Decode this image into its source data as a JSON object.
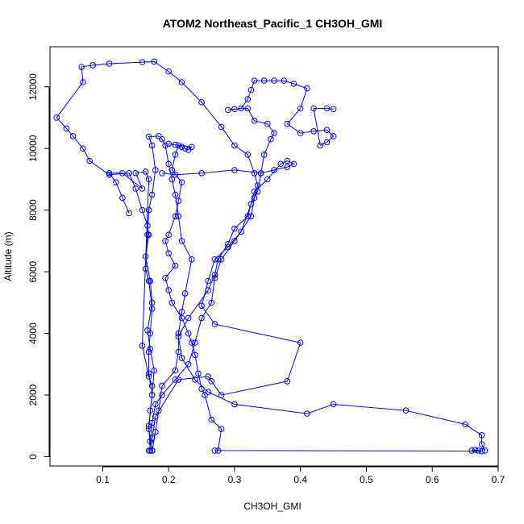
{
  "chart_data": {
    "type": "line",
    "title": "ATOM2 Northeast_Pacific_1 CH3OH_GMI",
    "xlabel": "CH3OH_GMI",
    "ylabel": "Altitude (m)",
    "xlim": [
      0.02,
      0.7
    ],
    "ylim": [
      -300,
      13300
    ],
    "x_ticks": [
      0.1,
      0.2,
      0.3,
      0.4,
      0.5,
      0.6,
      0.7
    ],
    "x_tick_labels": [
      "0.1",
      "0.2",
      "0.3",
      "0.4",
      "0.5",
      "0.6",
      "0.7"
    ],
    "y_ticks": [
      0,
      2000,
      4000,
      6000,
      8000,
      10000,
      12000
    ],
    "y_tick_labels": [
      "0",
      "2000",
      "4000",
      "6000",
      "8000",
      "10000",
      "12000"
    ],
    "grid": false,
    "legend": "none",
    "colors": {
      "series": "#0000ff",
      "axes": "#000000",
      "background": "#ffffff"
    },
    "series": [
      {
        "points": [
          [
            0.172,
            200
          ],
          [
            0.17,
            1000
          ],
          [
            0.175,
            2000
          ],
          [
            0.178,
            2800
          ],
          [
            0.172,
            3500
          ],
          [
            0.168,
            4100
          ],
          [
            0.175,
            5000
          ],
          [
            0.172,
            5700
          ],
          [
            0.165,
            6500
          ],
          [
            0.17,
            7200
          ],
          [
            0.168,
            7500
          ],
          [
            0.16,
            8000
          ],
          [
            0.15,
            8700
          ],
          [
            0.14,
            9200
          ],
          [
            0.11,
            9150
          ],
          [
            0.08,
            9600
          ],
          [
            0.07,
            10000
          ],
          [
            0.055,
            10400
          ],
          [
            0.045,
            10650
          ],
          [
            0.03,
            11000
          ],
          [
            0.07,
            12150
          ],
          [
            0.068,
            12650
          ],
          [
            0.085,
            12700
          ],
          [
            0.11,
            12750
          ],
          [
            0.16,
            12800
          ],
          [
            0.178,
            12820
          ],
          [
            0.2,
            12500
          ],
          [
            0.22,
            12150
          ],
          [
            0.25,
            11500
          ],
          [
            0.28,
            10700
          ],
          [
            0.3,
            10100
          ],
          [
            0.32,
            9800
          ],
          [
            0.33,
            9200
          ],
          [
            0.335,
            8800
          ],
          [
            0.33,
            8400
          ],
          [
            0.325,
            7800
          ],
          [
            0.3,
            7000
          ],
          [
            0.28,
            6400
          ],
          [
            0.27,
            5800
          ],
          [
            0.265,
            5000
          ],
          [
            0.25,
            4500
          ],
          [
            0.24,
            3700
          ],
          [
            0.23,
            3000
          ],
          [
            0.21,
            2500
          ],
          [
            0.19,
            2000
          ],
          [
            0.18,
            1700
          ],
          [
            0.175,
            1100
          ],
          [
            0.172,
            500
          ],
          [
            0.175,
            200
          ]
        ]
      },
      {
        "points": [
          [
            0.175,
            200
          ],
          [
            0.18,
            800
          ],
          [
            0.185,
            1500
          ],
          [
            0.19,
            2300
          ],
          [
            0.21,
            2800
          ],
          [
            0.215,
            3400
          ],
          [
            0.215,
            4000
          ],
          [
            0.22,
            4700
          ],
          [
            0.225,
            5300
          ],
          [
            0.235,
            6400
          ],
          [
            0.22,
            7000
          ],
          [
            0.215,
            7800
          ],
          [
            0.21,
            8500
          ],
          [
            0.205,
            9000
          ],
          [
            0.2,
            9500
          ],
          [
            0.195,
            10100
          ],
          [
            0.19,
            10300
          ],
          [
            0.185,
            10400
          ],
          [
            0.17,
            10380
          ],
          [
            0.175,
            10100
          ],
          [
            0.18,
            9300
          ],
          [
            0.175,
            8500
          ],
          [
            0.17,
            8000
          ],
          [
            0.168,
            7200
          ],
          [
            0.165,
            6100
          ],
          [
            0.17,
            5700
          ],
          [
            0.175,
            4800
          ],
          [
            0.172,
            4000
          ],
          [
            0.17,
            3400
          ],
          [
            0.17,
            2700
          ],
          [
            0.175,
            2000
          ],
          [
            0.172,
            1500
          ],
          [
            0.17,
            900
          ],
          [
            0.175,
            200
          ]
        ]
      },
      {
        "points": [
          [
            0.17,
            200
          ],
          [
            0.175,
            600
          ],
          [
            0.18,
            1300
          ],
          [
            0.215,
            2500
          ],
          [
            0.26,
            2600
          ],
          [
            0.265,
            2450
          ],
          [
            0.28,
            2000
          ],
          [
            0.38,
            2450
          ],
          [
            0.4,
            3700
          ],
          [
            0.27,
            4300
          ],
          [
            0.25,
            4900
          ],
          [
            0.26,
            5700
          ],
          [
            0.27,
            6400
          ],
          [
            0.29,
            6800
          ],
          [
            0.31,
            7300
          ],
          [
            0.325,
            8200
          ],
          [
            0.335,
            8600
          ],
          [
            0.34,
            9200
          ],
          [
            0.345,
            9800
          ],
          [
            0.355,
            10300
          ],
          [
            0.36,
            10500
          ],
          [
            0.35,
            10800
          ],
          [
            0.33,
            10900
          ],
          [
            0.32,
            11300
          ],
          [
            0.3,
            11280
          ],
          [
            0.29,
            11250
          ],
          [
            0.31,
            11300
          ],
          [
            0.32,
            11600
          ],
          [
            0.325,
            11900
          ],
          [
            0.33,
            12200
          ],
          [
            0.345,
            12200
          ],
          [
            0.36,
            12200
          ],
          [
            0.375,
            12200
          ],
          [
            0.39,
            12100
          ],
          [
            0.41,
            11950
          ],
          [
            0.4,
            11300
          ],
          [
            0.38,
            10800
          ],
          [
            0.4,
            10500
          ],
          [
            0.42,
            10560
          ],
          [
            0.44,
            10600
          ],
          [
            0.45,
            10400
          ],
          [
            0.44,
            10200
          ],
          [
            0.43,
            10100
          ],
          [
            0.42,
            11300
          ],
          [
            0.44,
            11300
          ],
          [
            0.45,
            11280
          ]
        ]
      },
      {
        "points": [
          [
            0.68,
            200
          ],
          [
            0.675,
            400
          ],
          [
            0.675,
            700
          ],
          [
            0.65,
            1050
          ],
          [
            0.56,
            1500
          ],
          [
            0.45,
            1700
          ],
          [
            0.41,
            1400
          ],
          [
            0.3,
            1700
          ],
          [
            0.26,
            2100
          ],
          [
            0.24,
            2500
          ],
          [
            0.22,
            3200
          ],
          [
            0.215,
            3900
          ],
          [
            0.23,
            4500
          ],
          [
            0.26,
            5400
          ],
          [
            0.27,
            5900
          ],
          [
            0.275,
            6400
          ],
          [
            0.29,
            6900
          ],
          [
            0.3,
            7400
          ],
          [
            0.32,
            7800
          ],
          [
            0.33,
            8600
          ],
          [
            0.35,
            9000
          ],
          [
            0.37,
            9500
          ],
          [
            0.38,
            9600
          ],
          [
            0.39,
            9500
          ],
          [
            0.38,
            9400
          ],
          [
            0.36,
            9300
          ],
          [
            0.34,
            9200
          ],
          [
            0.3,
            9300
          ],
          [
            0.25,
            9200
          ],
          [
            0.21,
            9150
          ],
          [
            0.19,
            9200
          ]
        ]
      },
      {
        "points": [
          [
            0.66,
            200
          ],
          [
            0.665,
            220
          ],
          [
            0.67,
            200
          ],
          [
            0.675,
            180
          ],
          [
            0.27,
            200
          ],
          [
            0.275,
            200
          ],
          [
            0.28,
            900
          ],
          [
            0.265,
            1200
          ],
          [
            0.255,
            2000
          ],
          [
            0.25,
            2200
          ],
          [
            0.245,
            2700
          ],
          [
            0.24,
            3300
          ],
          [
            0.235,
            3700
          ],
          [
            0.23,
            4000
          ],
          [
            0.22,
            4500
          ],
          [
            0.205,
            5000
          ],
          [
            0.2,
            5400
          ],
          [
            0.195,
            5800
          ],
          [
            0.21,
            6200
          ],
          [
            0.2,
            6600
          ],
          [
            0.195,
            7000
          ],
          [
            0.2,
            7200
          ],
          [
            0.21,
            7800
          ],
          [
            0.215,
            8300
          ],
          [
            0.22,
            8900
          ],
          [
            0.205,
            9300
          ],
          [
            0.21,
            9800
          ],
          [
            0.215,
            10100
          ],
          [
            0.22,
            10050
          ],
          [
            0.225,
            10000
          ],
          [
            0.23,
            9950
          ],
          [
            0.235,
            10050
          ],
          [
            0.21,
            10120
          ],
          [
            0.2,
            10150
          ]
        ]
      },
      {
        "points": [
          [
            0.14,
            7900
          ],
          [
            0.13,
            8400
          ],
          [
            0.12,
            8900
          ],
          [
            0.11,
            9200
          ],
          [
            0.13,
            9200
          ],
          [
            0.16,
            8700
          ],
          [
            0.15,
            9200
          ],
          [
            0.165,
            9250
          ],
          [
            0.17,
            9000
          ],
          [
            0.16,
            3600
          ],
          [
            0.17,
            2600
          ],
          [
            0.175,
            2300
          ]
        ]
      }
    ]
  }
}
